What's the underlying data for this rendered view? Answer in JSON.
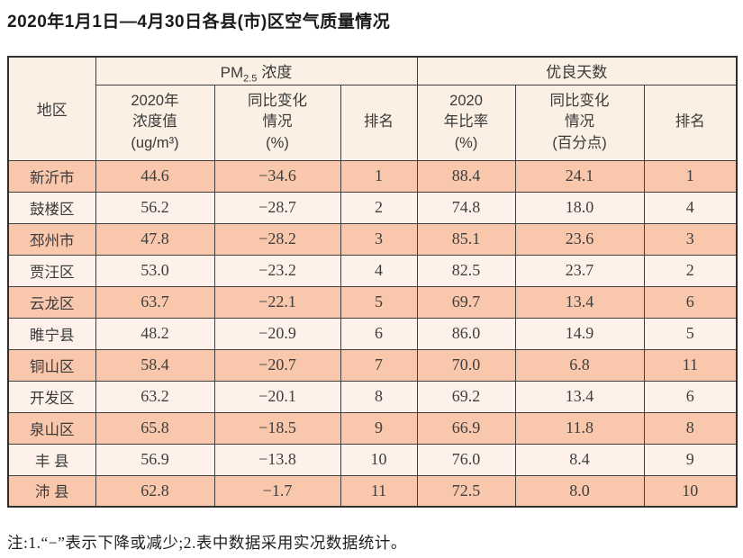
{
  "page": {
    "title": "2020年1月1日—4月30日各县(市)区空气质量情况",
    "footnote": "注:1.“−”表示下降或减少;2.表中数据采用实况数据统计。"
  },
  "table": {
    "corner_header": "地区",
    "group_pm": {
      "prefix": "PM",
      "subscript": "2.5",
      "suffix": "浓度"
    },
    "group_good": "优良天数",
    "subheaders": {
      "pm_value": "2020年\n浓度值\n(ug/m³)",
      "pm_change": "同比变化\n情况\n(%)",
      "pm_rank": "排名",
      "good_rate": "2020\n年比率\n(%)",
      "good_change": "同比变化\n情况\n(百分点)",
      "good_rank": "排名"
    },
    "rows": [
      {
        "region": "新沂市",
        "pm_value": "44.6",
        "pm_change": "−34.6",
        "pm_rank": "1",
        "good_rate": "88.4",
        "good_change": "24.1",
        "good_rank": "1"
      },
      {
        "region": "鼓楼区",
        "pm_value": "56.2",
        "pm_change": "−28.7",
        "pm_rank": "2",
        "good_rate": "74.8",
        "good_change": "18.0",
        "good_rank": "4"
      },
      {
        "region": "邳州市",
        "pm_value": "47.8",
        "pm_change": "−28.2",
        "pm_rank": "3",
        "good_rate": "85.1",
        "good_change": "23.6",
        "good_rank": "3"
      },
      {
        "region": "贾汪区",
        "pm_value": "53.0",
        "pm_change": "−23.2",
        "pm_rank": "4",
        "good_rate": "82.5",
        "good_change": "23.7",
        "good_rank": "2"
      },
      {
        "region": "云龙区",
        "pm_value": "63.7",
        "pm_change": "−22.1",
        "pm_rank": "5",
        "good_rate": "69.7",
        "good_change": "13.4",
        "good_rank": "6"
      },
      {
        "region": "睢宁县",
        "pm_value": "48.2",
        "pm_change": "−20.9",
        "pm_rank": "6",
        "good_rate": "86.0",
        "good_change": "14.9",
        "good_rank": "5"
      },
      {
        "region": "铜山区",
        "pm_value": "58.4",
        "pm_change": "−20.7",
        "pm_rank": "7",
        "good_rate": "70.0",
        "good_change": "6.8",
        "good_rank": "11"
      },
      {
        "region": "开发区",
        "pm_value": "63.2",
        "pm_change": "−20.1",
        "pm_rank": "8",
        "good_rate": "69.2",
        "good_change": "13.4",
        "good_rank": "6"
      },
      {
        "region": "泉山区",
        "pm_value": "65.8",
        "pm_change": "−18.5",
        "pm_rank": "9",
        "good_rate": "66.9",
        "good_change": "11.8",
        "good_rank": "8"
      },
      {
        "region": "丰 县",
        "pm_value": "56.9",
        "pm_change": "−13.8",
        "pm_rank": "10",
        "good_rate": "76.0",
        "good_change": "8.4",
        "good_rank": "9"
      },
      {
        "region": "沛 县",
        "pm_value": "62.8",
        "pm_change": "−1.7",
        "pm_rank": "11",
        "good_rate": "72.5",
        "good_change": "8.0",
        "good_rank": "10"
      }
    ]
  },
  "colors": {
    "row_salmon": "#f8c7ac",
    "row_cream": "#fdf1e9",
    "header_bg": "#fcefe3",
    "border": "#3f3f3f"
  }
}
